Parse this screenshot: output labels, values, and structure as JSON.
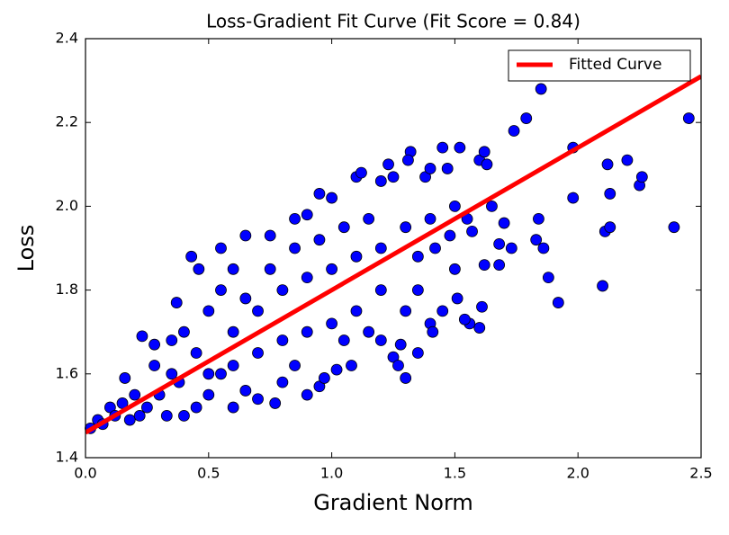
{
  "chart_data": {
    "type": "scatter",
    "title": "Loss-Gradient Fit Curve (Fit Score = 0.84)",
    "xlabel": "Gradient Norm",
    "ylabel": "Loss",
    "color": "#0000ff",
    "x": [
      1.85,
      2.45,
      2.39,
      2.1,
      1.92,
      1.88,
      2.25,
      2.26,
      2.2,
      2.13,
      2.12,
      2.11,
      2.13,
      1.98,
      1.98,
      1.79,
      1.74,
      1.84,
      1.83,
      1.86,
      1.73,
      1.7,
      1.68,
      1.68,
      1.62,
      1.6,
      1.61,
      1.56,
      1.51,
      1.54,
      1.5,
      1.57,
      1.6,
      1.62,
      1.63,
      1.52,
      1.45,
      1.47,
      1.38,
      1.4,
      1.32,
      1.31,
      1.25,
      1.23,
      1.2,
      1.1,
      1.12,
      1.0,
      0.95,
      0.9,
      0.85,
      0.75,
      0.65,
      0.55,
      0.43,
      0.46,
      0.37,
      0.4,
      0.28,
      0.23,
      0.16,
      0.1,
      0.05,
      0.02,
      0.07,
      0.12,
      0.18,
      0.25,
      0.3,
      0.35,
      0.2,
      0.28,
      0.33,
      0.4,
      0.45,
      0.5,
      0.55,
      0.6,
      0.65,
      0.7,
      0.77,
      0.8,
      0.9,
      0.95,
      0.97,
      1.02,
      1.08,
      1.15,
      1.2,
      1.25,
      1.27,
      1.3,
      1.28,
      1.4,
      1.41,
      1.35,
      1.45,
      1.3,
      1.2,
      1.1,
      1.0,
      0.9,
      0.8,
      0.7,
      0.6,
      0.5,
      0.6,
      0.7,
      0.8,
      0.9,
      1.0,
      1.1,
      1.2,
      1.3,
      1.4,
      1.5,
      1.35,
      1.42,
      0.5,
      0.55,
      0.6,
      0.65,
      0.75,
      0.85,
      0.95,
      1.05,
      1.15,
      0.45,
      0.35,
      0.38,
      0.15,
      0.22,
      1.35,
      1.05,
      0.85,
      1.48,
      1.65,
      1.55
    ],
    "values": [
      2.28,
      2.21,
      1.95,
      1.81,
      1.77,
      1.83,
      2.05,
      2.07,
      2.11,
      2.03,
      2.1,
      1.94,
      1.95,
      2.02,
      2.14,
      2.21,
      2.18,
      1.97,
      1.92,
      1.9,
      1.9,
      1.96,
      1.91,
      1.86,
      1.86,
      1.71,
      1.76,
      1.72,
      1.78,
      1.73,
      1.85,
      1.94,
      2.11,
      2.13,
      2.1,
      2.14,
      2.14,
      2.09,
      2.07,
      2.09,
      2.13,
      2.11,
      2.07,
      2.1,
      2.06,
      2.07,
      2.08,
      2.02,
      2.03,
      1.98,
      1.97,
      1.93,
      1.93,
      1.9,
      1.88,
      1.85,
      1.77,
      1.7,
      1.67,
      1.69,
      1.59,
      1.52,
      1.49,
      1.47,
      1.48,
      1.5,
      1.49,
      1.52,
      1.55,
      1.6,
      1.55,
      1.62,
      1.5,
      1.5,
      1.52,
      1.55,
      1.6,
      1.52,
      1.56,
      1.54,
      1.53,
      1.58,
      1.55,
      1.57,
      1.59,
      1.61,
      1.62,
      1.7,
      1.68,
      1.64,
      1.62,
      1.59,
      1.67,
      1.72,
      1.7,
      1.8,
      1.75,
      1.75,
      1.8,
      1.75,
      1.72,
      1.7,
      1.68,
      1.65,
      1.62,
      1.6,
      1.7,
      1.75,
      1.8,
      1.83,
      1.85,
      1.88,
      1.9,
      1.95,
      1.97,
      2.0,
      1.88,
      1.9,
      1.75,
      1.8,
      1.85,
      1.78,
      1.85,
      1.9,
      1.92,
      1.95,
      1.97,
      1.65,
      1.68,
      1.58,
      1.53,
      1.5,
      1.65,
      1.68,
      1.62,
      1.93,
      2.0,
      1.97
    ],
    "fit": {
      "name": "Fitted Curve",
      "color": "#ff0000",
      "x": [
        0,
        2.5
      ],
      "values": [
        1.46,
        2.31
      ]
    },
    "xlim": [
      0,
      2.5
    ],
    "xticks": [
      {
        "value": 0,
        "label": "0.0"
      },
      0.5,
      {
        "value": 1,
        "label": "1.0"
      },
      1.5,
      {
        "value": 2,
        "label": "2.0"
      },
      2.5
    ],
    "ylim": [
      1.4,
      2.4
    ],
    "yticks": [
      1.4,
      1.6,
      1.8,
      {
        "value": 2,
        "label": "2.0"
      },
      2.2,
      2.4
    ],
    "legend": "upper right"
  }
}
